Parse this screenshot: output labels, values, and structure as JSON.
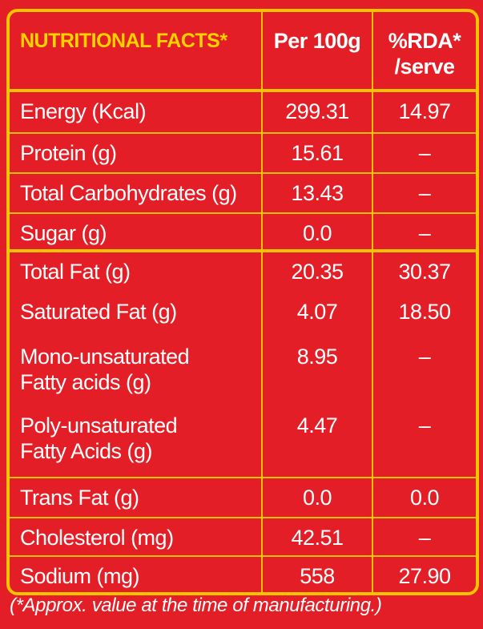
{
  "header": {
    "title": "NUTRITIONAL FACTS*",
    "col_per100": "Per 100g",
    "col_rda_line1": "%RDA*",
    "col_rda_line2": "/serve"
  },
  "rows": [
    {
      "label": "Energy (Kcal)",
      "per100": "299.31",
      "rda": "14.97"
    },
    {
      "label": "Protein (g)",
      "per100": "15.61",
      "rda": "–"
    },
    {
      "label": "Total Carbohydrates (g)",
      "per100": "13.43",
      "rda": "–"
    },
    {
      "label": "Sugar (g)",
      "per100": "0.0",
      "rda": "–"
    },
    {
      "label": "Total Fat (g)",
      "per100": "20.35",
      "rda": "30.37"
    },
    {
      "label": "Saturated Fat (g)",
      "per100": "4.07",
      "rda": "18.50"
    },
    {
      "label": "Mono-unsaturated",
      "label2": "Fatty acids (g)",
      "per100": "8.95",
      "rda": "–"
    },
    {
      "label": "Poly-unsaturated",
      "label2": "Fatty Acids (g)",
      "per100": "4.47",
      "rda": "–"
    },
    {
      "label": "Trans Fat (g)",
      "per100": "0.0",
      "rda": "0.0"
    },
    {
      "label": "Cholesterol (mg)",
      "per100": "42.51",
      "rda": "–"
    },
    {
      "label": "Sodium (mg)",
      "per100": "558",
      "rda": "27.90"
    }
  ],
  "footnote": "(*Approx. value at the time of manufacturing.)",
  "colors": {
    "background": "#e31e26",
    "border": "#f5c400",
    "title": "#ffd200",
    "text": "#ffffff"
  }
}
